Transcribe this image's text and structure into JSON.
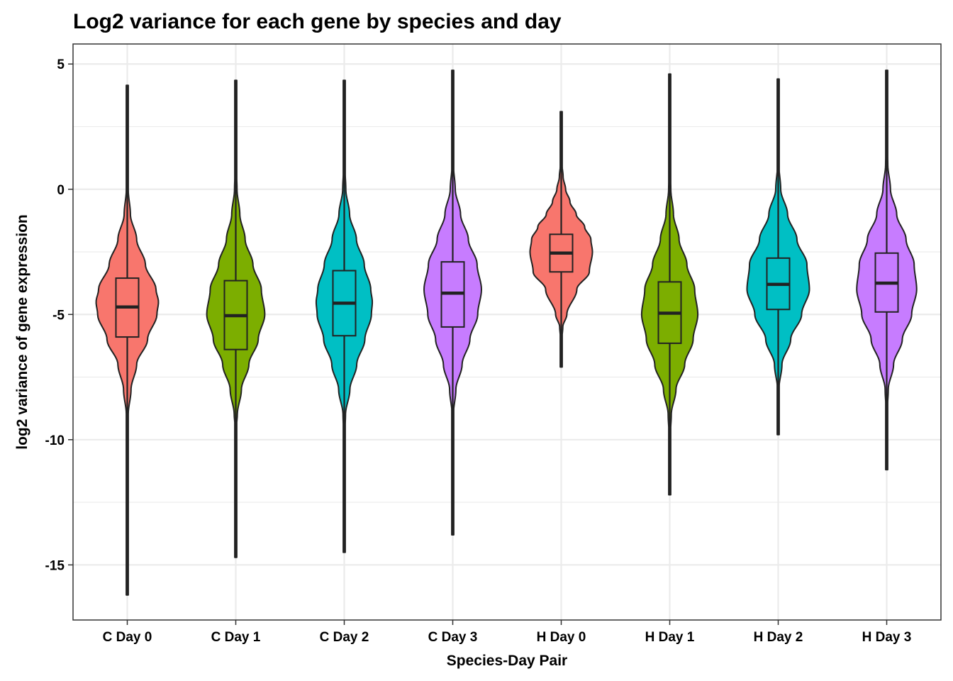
{
  "chart_data": {
    "type": "violin",
    "title": "Log2 variance for each gene by species and day",
    "xlabel": "Species-Day Pair",
    "ylabel": "log2 variance of gene expression",
    "ylim": [
      -17.2,
      5.8
    ],
    "yticks": [
      5,
      0,
      -5,
      -10,
      -15
    ],
    "ytick_labels": [
      "5",
      "0",
      "-5",
      "-10",
      "-15"
    ],
    "grid": true,
    "legend": "none",
    "categories": [
      "C Day 0",
      "C Day 1",
      "C Day 2",
      "C Day 3",
      "H Day 0",
      "H Day 1",
      "H Day 2",
      "H Day 3"
    ],
    "colors": [
      "#F8766D",
      "#7CAE00",
      "#00BFC4",
      "#C77CFF",
      "#F8766D",
      "#7CAE00",
      "#00BFC4",
      "#C77CFF"
    ],
    "series": [
      {
        "category": "C Day 0",
        "min": -16.2,
        "max": 4.15,
        "q1": -5.9,
        "median": -4.7,
        "q3": -3.55,
        "density": [
          [
            -16.2,
            0.003
          ],
          [
            -12,
            0.006
          ],
          [
            -10,
            0.01
          ],
          [
            -9,
            0.03
          ],
          [
            -8,
            0.12
          ],
          [
            -7,
            0.3
          ],
          [
            -6,
            0.65
          ],
          [
            -5,
            0.95
          ],
          [
            -4.5,
            1.0
          ],
          [
            -4,
            0.92
          ],
          [
            -3,
            0.58
          ],
          [
            -2,
            0.3
          ],
          [
            -1,
            0.1
          ],
          [
            0,
            0.03
          ],
          [
            1,
            0.012
          ],
          [
            2,
            0.008
          ],
          [
            4.15,
            0.004
          ]
        ]
      },
      {
        "category": "C Day 1",
        "min": -14.7,
        "max": 4.35,
        "q1": -6.4,
        "median": -5.05,
        "q3": -3.65,
        "density": [
          [
            -14.7,
            0.003
          ],
          [
            -11,
            0.006
          ],
          [
            -9.5,
            0.02
          ],
          [
            -9,
            0.05
          ],
          [
            -8,
            0.18
          ],
          [
            -7,
            0.42
          ],
          [
            -6,
            0.72
          ],
          [
            -5,
            0.93
          ],
          [
            -4,
            0.82
          ],
          [
            -3,
            0.55
          ],
          [
            -2,
            0.3
          ],
          [
            -1,
            0.13
          ],
          [
            0,
            0.04
          ],
          [
            1,
            0.012
          ],
          [
            4.35,
            0.004
          ]
        ]
      },
      {
        "category": "C Day 2",
        "min": -14.5,
        "max": 4.35,
        "q1": -5.85,
        "median": -4.55,
        "q3": -3.25,
        "density": [
          [
            -14.5,
            0.003
          ],
          [
            -10,
            0.006
          ],
          [
            -9,
            0.04
          ],
          [
            -8,
            0.18
          ],
          [
            -7,
            0.4
          ],
          [
            -6,
            0.66
          ],
          [
            -5,
            0.87
          ],
          [
            -4.5,
            0.9
          ],
          [
            -4,
            0.85
          ],
          [
            -3,
            0.64
          ],
          [
            -2,
            0.39
          ],
          [
            -1,
            0.17
          ],
          [
            0,
            0.05
          ],
          [
            1,
            0.015
          ],
          [
            4.35,
            0.004
          ]
        ]
      },
      {
        "category": "C Day 3",
        "min": -13.8,
        "max": 4.75,
        "q1": -5.5,
        "median": -4.15,
        "q3": -2.9,
        "density": [
          [
            -13.8,
            0.003
          ],
          [
            -10,
            0.006
          ],
          [
            -9,
            0.02
          ],
          [
            -8,
            0.1
          ],
          [
            -7,
            0.3
          ],
          [
            -6,
            0.55
          ],
          [
            -5,
            0.8
          ],
          [
            -4,
            0.92
          ],
          [
            -3,
            0.78
          ],
          [
            -2,
            0.5
          ],
          [
            -1,
            0.25
          ],
          [
            0,
            0.08
          ],
          [
            1,
            0.02
          ],
          [
            2,
            0.008
          ],
          [
            4.75,
            0.004
          ]
        ]
      },
      {
        "category": "H Day 0",
        "min": -7.1,
        "max": 3.1,
        "q1": -3.3,
        "median": -2.55,
        "q3": -1.8,
        "density": [
          [
            -7.1,
            0.003
          ],
          [
            -6,
            0.02
          ],
          [
            -5.5,
            0.05
          ],
          [
            -5,
            0.18
          ],
          [
            -4,
            0.5
          ],
          [
            -3.3,
            0.9
          ],
          [
            -2.5,
            1.0
          ],
          [
            -2,
            0.95
          ],
          [
            -1.5,
            0.75
          ],
          [
            -1,
            0.48
          ],
          [
            -0.5,
            0.28
          ],
          [
            0,
            0.14
          ],
          [
            0.5,
            0.06
          ],
          [
            1,
            0.025
          ],
          [
            2,
            0.01
          ],
          [
            3.1,
            0.004
          ]
        ]
      },
      {
        "category": "H Day 1",
        "min": -12.2,
        "max": 4.6,
        "q1": -6.15,
        "median": -4.95,
        "q3": -3.7,
        "density": [
          [
            -12.2,
            0.003
          ],
          [
            -10,
            0.01
          ],
          [
            -9,
            0.05
          ],
          [
            -8,
            0.2
          ],
          [
            -7,
            0.48
          ],
          [
            -6,
            0.75
          ],
          [
            -5,
            0.9
          ],
          [
            -4,
            0.8
          ],
          [
            -3,
            0.55
          ],
          [
            -2,
            0.3
          ],
          [
            -1,
            0.12
          ],
          [
            0,
            0.035
          ],
          [
            1,
            0.012
          ],
          [
            4.6,
            0.004
          ]
        ]
      },
      {
        "category": "H Day 2",
        "min": -9.8,
        "max": 4.4,
        "q1": -4.8,
        "median": -3.8,
        "q3": -2.75,
        "density": [
          [
            -9.8,
            0.003
          ],
          [
            -8,
            0.02
          ],
          [
            -7,
            0.12
          ],
          [
            -6,
            0.4
          ],
          [
            -5,
            0.75
          ],
          [
            -4,
            1.0
          ],
          [
            -3,
            0.92
          ],
          [
            -2,
            0.6
          ],
          [
            -1,
            0.3
          ],
          [
            0,
            0.08
          ],
          [
            1,
            0.02
          ],
          [
            2,
            0.008
          ],
          [
            4.4,
            0.004
          ]
        ]
      },
      {
        "category": "H Day 3",
        "min": -11.2,
        "max": 4.75,
        "q1": -4.9,
        "median": -3.75,
        "q3": -2.55,
        "density": [
          [
            -11.2,
            0.003
          ],
          [
            -9,
            0.01
          ],
          [
            -8,
            0.05
          ],
          [
            -7,
            0.22
          ],
          [
            -6,
            0.5
          ],
          [
            -5,
            0.8
          ],
          [
            -4,
            0.96
          ],
          [
            -3,
            0.88
          ],
          [
            -2,
            0.62
          ],
          [
            -1,
            0.32
          ],
          [
            0,
            0.12
          ],
          [
            1,
            0.035
          ],
          [
            2,
            0.01
          ],
          [
            4.75,
            0.004
          ]
        ]
      }
    ]
  }
}
